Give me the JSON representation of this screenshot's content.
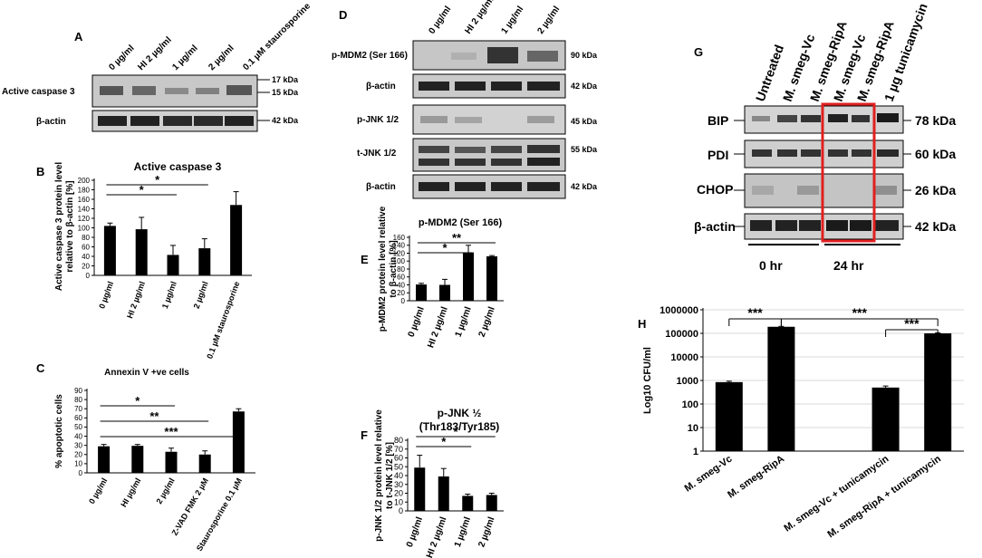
{
  "panel_letters": {
    "A": "A",
    "B": "B",
    "C": "C",
    "D": "D",
    "E": "E",
    "F": "F",
    "G": "G",
    "H": "H"
  },
  "panelA": {
    "lanes": [
      "0 µg/ml",
      "HI 2 µg/ml",
      "1 µg/ml",
      "2 µg/ml",
      "0.1 µM staurosporine"
    ],
    "row_labels": [
      "Active caspase 3",
      "β-actin"
    ],
    "kda": [
      "17 kDa",
      "15 kDa",
      "42 kDa"
    ]
  },
  "panelD": {
    "lanes": [
      "0 µg/ml",
      "HI 2 µg/ml",
      "1 µg/ml",
      "2 µg/ml"
    ],
    "row_labels": [
      "p-MDM2 (Ser 166)",
      "β-actin",
      "p-JNK 1/2",
      "t-JNK 1/2",
      "β-actin"
    ],
    "kda": [
      "90 kDa",
      "42 kDa",
      "45 kDa",
      "55 kDa",
      "42 kDa"
    ]
  },
  "panelG": {
    "lanes": [
      "Untreated",
      "M. smeg-Vc",
      "M. smeg-RipA",
      "M. smeg-Vc",
      "M. smeg-RipA",
      "1 µg tunicamycin"
    ],
    "row_labels": [
      "BIP",
      "PDI",
      "CHOP",
      "β-actin"
    ],
    "kda": [
      "78 kDa",
      "60 kDa",
      "26 kDa",
      "42 kDa"
    ],
    "time_labels": [
      "0 hr",
      "24 hr"
    ],
    "highlight_color": "#e02020"
  },
  "chart_data": [
    {
      "id": "B",
      "type": "bar",
      "title": "Active caspase 3",
      "ylabel_lines": [
        "Active caspase 3 protein level",
        "relative  to β-actin [%]"
      ],
      "categories": [
        "0 µg/ml",
        "HI 2 µg/ml",
        "1 µg/ml",
        "2 µg/ml",
        "0.1 µM staurosporine"
      ],
      "values": [
        104,
        97,
        43,
        57,
        148
      ],
      "errors": [
        6,
        25,
        20,
        20,
        28
      ],
      "ylim": [
        0,
        200
      ],
      "yticks": [
        0,
        20,
        40,
        60,
        80,
        100,
        120,
        140,
        160,
        180,
        200
      ],
      "sig": [
        {
          "from": 0,
          "to": 3,
          "label": "*"
        },
        {
          "from": 0,
          "to": 2,
          "label": "*"
        }
      ]
    },
    {
      "id": "C",
      "type": "bar",
      "title": "Annexin V +ve cells",
      "ylabel_lines": [
        "% apoptotic cells"
      ],
      "categories": [
        "0 µg/ml",
        "HI µg/ml",
        "2 µg/ml",
        "Z-VAD FMK 2 µM",
        "Staurosporine 0.1 µM"
      ],
      "values": [
        29,
        29.5,
        23,
        20,
        67
      ],
      "errors": [
        2,
        1.5,
        4,
        4,
        3
      ],
      "ylim": [
        0,
        90
      ],
      "yticks": [
        0,
        10,
        20,
        30,
        40,
        50,
        60,
        70,
        80,
        90
      ],
      "sig": [
        {
          "from": 0,
          "to": 4,
          "label": "***"
        },
        {
          "from": 0,
          "to": 3,
          "label": "**"
        },
        {
          "from": 0,
          "to": 2,
          "label": "*"
        }
      ]
    },
    {
      "id": "E",
      "type": "bar",
      "title": "p-MDM2 (Ser 166)",
      "ylabel_lines": [
        "p-MDM2 protein level relative",
        "to β-actin [%]"
      ],
      "categories": [
        "0 µg/ml",
        "HI 2 µg/ml",
        "1 µg/ml",
        "2 µg/ml"
      ],
      "values": [
        41,
        40,
        122,
        112
      ],
      "errors": [
        3,
        14,
        18,
        2
      ],
      "ylim": [
        0,
        160
      ],
      "yticks": [
        0,
        20,
        40,
        60,
        80,
        100,
        120,
        140,
        160
      ],
      "sig": [
        {
          "from": 0,
          "to": 3,
          "label": "**"
        },
        {
          "from": 0,
          "to": 2,
          "label": "*"
        }
      ]
    },
    {
      "id": "F",
      "type": "bar",
      "title_lines": [
        "p-JNK ½",
        "(Thr183/Tyr185)"
      ],
      "ylabel_lines": [
        "p-JNK 1/2 protein level relative",
        "to t-JNK 1/2 [%]"
      ],
      "categories": [
        "0 µg/ml",
        "HI 2 µg/ml",
        "1 µg/ml",
        "2 µg/ml"
      ],
      "values": [
        49,
        39,
        17,
        18
      ],
      "errors": [
        14,
        9,
        2,
        2
      ],
      "ylim": [
        0,
        80
      ],
      "yticks": [
        0,
        10,
        20,
        30,
        40,
        50,
        60,
        70,
        80
      ],
      "sig": [
        {
          "from": 0,
          "to": 3,
          "label": "*"
        },
        {
          "from": 0,
          "to": 2,
          "label": "*"
        }
      ]
    },
    {
      "id": "H",
      "type": "bar",
      "log_scale": true,
      "ylabel": "Log10 CFU/ml",
      "categories": [
        "M. smeg-Vc",
        "M. smeg-RipA",
        "",
        "M. smeg-Vc + tunicamycin",
        "M. smeg-RipA + tunicamycin"
      ],
      "values": [
        850,
        190000,
        null,
        500,
        100000
      ],
      "errors": [
        80,
        8000,
        null,
        80,
        6000
      ],
      "ylim": [
        1,
        1000000
      ],
      "yticks": [
        "1",
        "10",
        "100",
        "1000",
        "10000",
        "100000",
        "1000000"
      ],
      "grid": true,
      "sig": [
        {
          "from": 0,
          "to": 1,
          "label": "***"
        },
        {
          "from": 1,
          "to": 4,
          "label": "***"
        },
        {
          "from": 3,
          "to": 4,
          "label": "***"
        }
      ]
    }
  ]
}
